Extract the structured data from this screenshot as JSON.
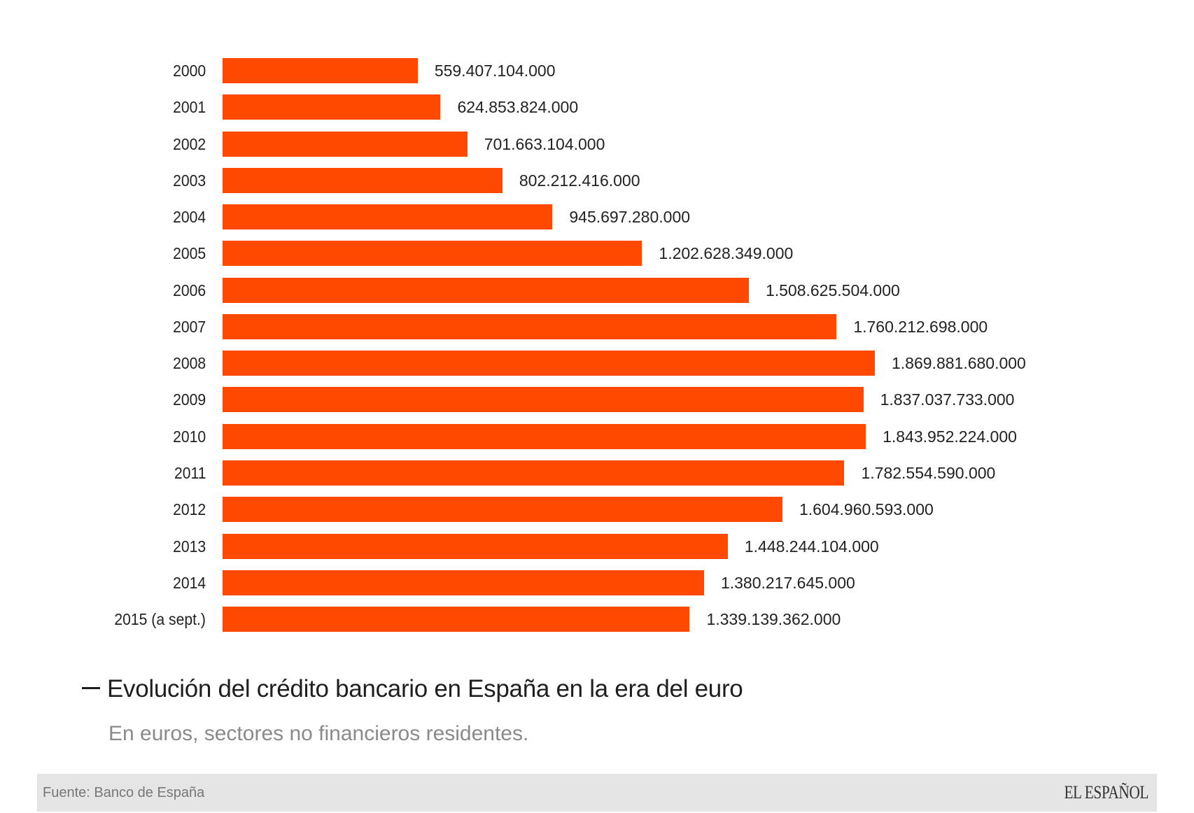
{
  "chart_data": {
    "type": "bar",
    "orientation": "horizontal",
    "categories": [
      "2000",
      "2001",
      "2002",
      "2003",
      "2004",
      "2005",
      "2006",
      "2007",
      "2008",
      "2009",
      "2010",
      "2011",
      "2012",
      "2013",
      "2014",
      "2015 (a sept.)"
    ],
    "values": [
      559407104000,
      624853824000,
      701663104000,
      802212416000,
      945697280000,
      1202628349000,
      1508625504000,
      1760212698000,
      1869881680000,
      1837037733000,
      1843952224000,
      1782554590000,
      1604960593000,
      1448244104000,
      1380217645000,
      1339139362000
    ],
    "value_labels": [
      "559.407.104.000",
      "624.853.824.000",
      "701.663.104.000",
      "802.212.416.000",
      "945.697.280.000",
      "1.202.628.349.000",
      "1.508.625.504.000",
      "1.760.212.698.000",
      "1.869.881.680.000",
      "1.837.037.733.000",
      "1.843.952.224.000",
      "1.782.554.590.000",
      "1.604.960.593.000",
      "1.448.244.104.000",
      "1.380.217.645.000",
      "1.339.139.362.000"
    ],
    "title": "Evolución del crédito bancario en España en la era del euro",
    "subtitle": "En euros, sectores no financieros residentes.",
    "xlabel": "",
    "ylabel": "",
    "xlim": [
      0,
      1869881680000
    ],
    "grid": false,
    "legend": "none",
    "bar_color": "#FF4800"
  },
  "header": {
    "title": "Evolución del crédito bancario en España en la era del euro",
    "subtitle": "En euros, sectores no financieros residentes."
  },
  "footer": {
    "source": "Fuente: Banco de España",
    "logo": "EL ESPAÑOL"
  }
}
